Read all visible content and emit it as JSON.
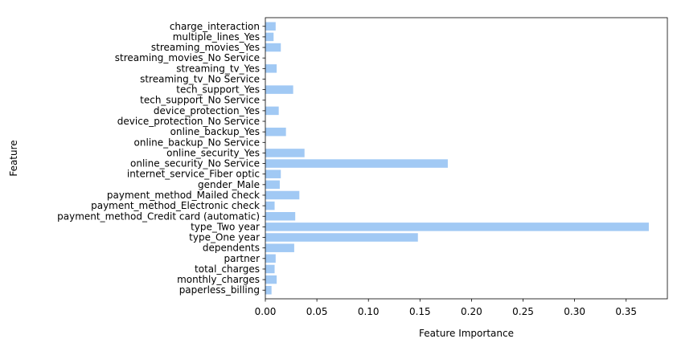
{
  "chart_data": {
    "type": "bar",
    "orientation": "horizontal",
    "title": "",
    "xlabel": "Feature Importance",
    "ylabel": "Feature",
    "xlim": [
      0,
      0.39
    ],
    "xticks": [
      "0.00",
      "0.05",
      "0.10",
      "0.15",
      "0.20",
      "0.25",
      "0.30",
      "0.35"
    ],
    "grid": false,
    "bar_color": "#a1c9f4",
    "categories": [
      "paperless_billing",
      "monthly_charges",
      "total_charges",
      "partner",
      "dependents",
      "type_One year",
      "type_Two year",
      "payment_method_Credit card (automatic)",
      "payment_method_Electronic check",
      "payment_method_Mailed check",
      "gender_Male",
      "internet_service_Fiber optic",
      "online_security_No Service",
      "online_security_Yes",
      "online_backup_No Service",
      "online_backup_Yes",
      "device_protection_No Service",
      "device_protection_Yes",
      "tech_support_No Service",
      "tech_support_Yes",
      "streaming_tv_No Service",
      "streaming_tv_Yes",
      "streaming_movies_No Service",
      "streaming_movies_Yes",
      "multiple_lines_Yes",
      "charge_interaction"
    ],
    "values": [
      0.006,
      0.011,
      0.009,
      0.01,
      0.028,
      0.148,
      0.372,
      0.029,
      0.009,
      0.033,
      0.014,
      0.015,
      0.177,
      0.038,
      0.0,
      0.02,
      0.0,
      0.013,
      0.0,
      0.027,
      0.0,
      0.011,
      0.0,
      0.015,
      0.008,
      0.01
    ]
  }
}
